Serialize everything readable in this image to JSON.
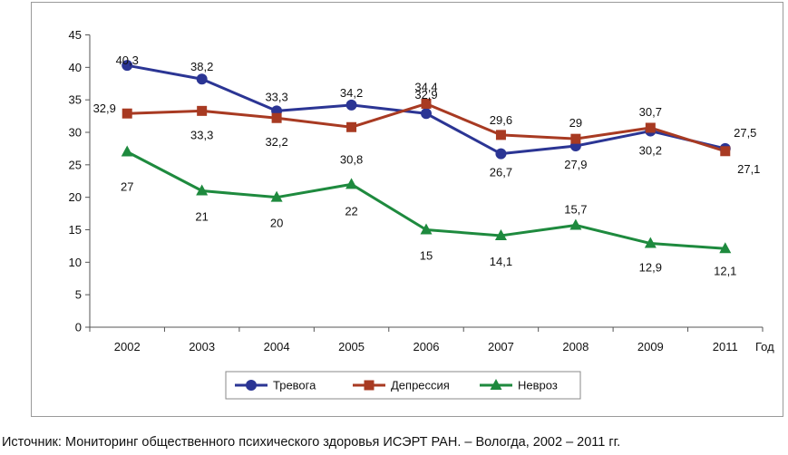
{
  "chart_data": {
    "type": "line",
    "title": "",
    "xlabel": "Год",
    "ylabel": "",
    "ylim": [
      0,
      45
    ],
    "y_ticks": [
      "0",
      "5",
      "10",
      "15",
      "20",
      "25",
      "30",
      "35",
      "40",
      "45"
    ],
    "categories": [
      "2002",
      "2003",
      "2004",
      "2005",
      "2006",
      "2007",
      "2008",
      "2009",
      "2011"
    ],
    "grid": false,
    "legend_position": "bottom",
    "series": [
      {
        "name": "Тревога",
        "color": "#2b3594",
        "marker": "circle",
        "values": [
          40.3,
          38.2,
          33.3,
          34.2,
          32.9,
          26.7,
          27.9,
          30.2,
          27.5
        ],
        "labels": [
          "40,3",
          "38,2",
          "33,3",
          "34,2",
          "32,9",
          "26,7",
          "27,9",
          "30,2",
          "27,5"
        ]
      },
      {
        "name": "Депрессия",
        "color": "#a83a22",
        "marker": "square",
        "values": [
          32.9,
          33.3,
          32.2,
          30.8,
          34.4,
          29.6,
          29,
          30.7,
          27.1
        ],
        "labels": [
          "32,9",
          "33,3",
          "32,2",
          "30,8",
          "34,4",
          "29,6",
          "29",
          "30,7",
          "27,1"
        ]
      },
      {
        "name": "Невроз",
        "color": "#1e8a3e",
        "marker": "triangle",
        "values": [
          27,
          21,
          20,
          22,
          15,
          14.1,
          15.7,
          12.9,
          12.1
        ],
        "labels": [
          "27",
          "21",
          "20",
          "22",
          "15",
          "14,1",
          "15,7",
          "12,9",
          "12,1"
        ]
      }
    ]
  },
  "source_note": "Источник: Мониторинг общественного психического здоровья ИСЭРТ РАН. – Вологда, 2002 – 2011 гг."
}
